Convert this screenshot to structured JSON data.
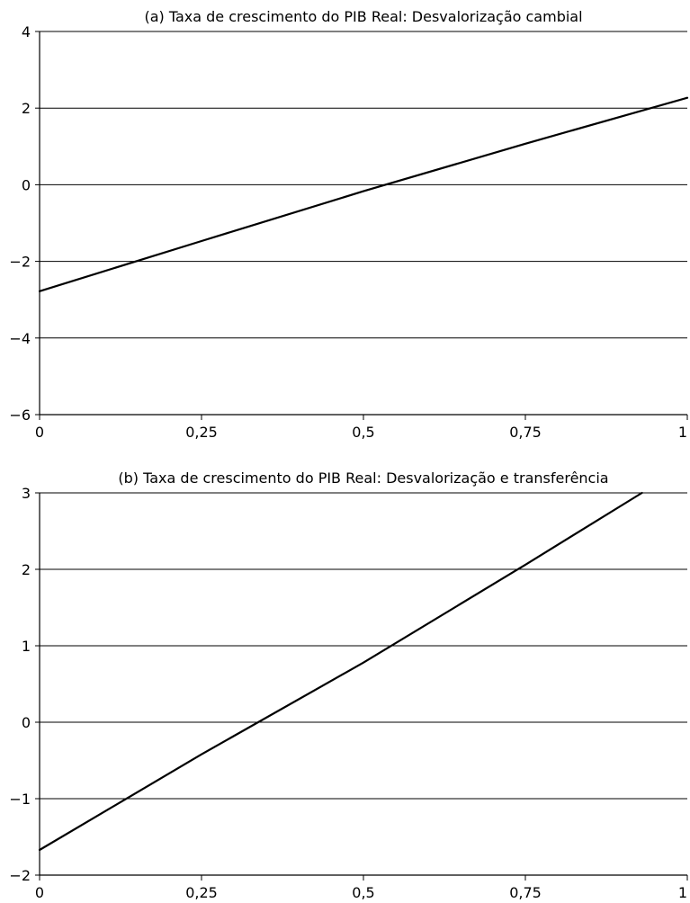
{
  "chart_data": [
    {
      "type": "line",
      "title": "(a) Taxa de crescimento do PIB Real: Desvalorização cambial",
      "xlabel": "",
      "ylabel": "",
      "xlim": [
        0,
        1
      ],
      "ylim": [
        -6,
        4
      ],
      "x_ticks": [
        0,
        0.25,
        0.5,
        0.75,
        1
      ],
      "x_tick_labels": [
        "0",
        "0,25",
        "0,5",
        "0,75",
        "1"
      ],
      "y_ticks": [
        -6,
        -4,
        -2,
        0,
        2,
        4
      ],
      "y_tick_labels": [
        "−6",
        "−4",
        "−2",
        "0",
        "2",
        "4"
      ],
      "grid": "horizontal",
      "series": [
        {
          "x": [
            0,
            0.25,
            0.5,
            0.75,
            1
          ],
          "y": [
            -2.78,
            -1.47,
            -0.17,
            1.07,
            2.27
          ]
        }
      ]
    },
    {
      "type": "line",
      "title": "(b) Taxa de crescimento do PIB Real: Desvalorização e transferência",
      "xlabel": "",
      "ylabel": "",
      "xlim": [
        0,
        1
      ],
      "ylim": [
        -2,
        3
      ],
      "x_ticks": [
        0,
        0.25,
        0.5,
        0.75,
        1
      ],
      "x_tick_labels": [
        "0",
        "0,25",
        "0,5",
        "0,75",
        "1"
      ],
      "y_ticks": [
        -2,
        -1,
        0,
        1,
        2,
        3
      ],
      "y_tick_labels": [
        "−2",
        "−1",
        "0",
        "1",
        "2",
        "3"
      ],
      "grid": "horizontal",
      "series": [
        {
          "x": [
            0,
            0.25,
            0.5,
            0.75,
            0.93
          ],
          "y": [
            -1.67,
            -0.42,
            0.78,
            2.06,
            3.0
          ]
        }
      ]
    }
  ]
}
